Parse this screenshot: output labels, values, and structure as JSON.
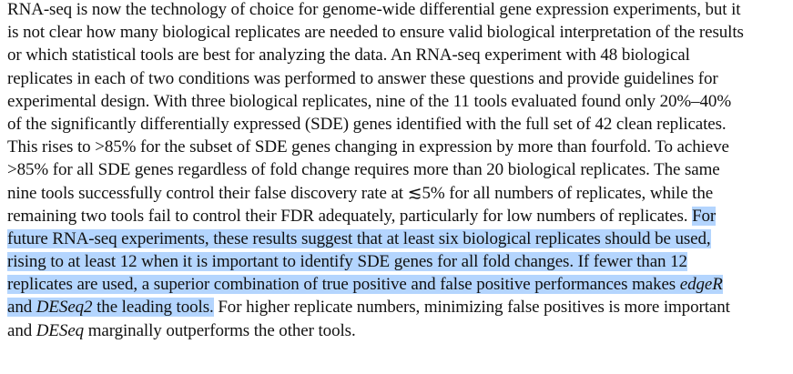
{
  "colors": {
    "selection_highlight": "#b4d5fe",
    "text": "#111111"
  },
  "abstract": {
    "l1": "RNA-seq is now the technology of choice for genome-wide differential gene expression experiments, but it",
    "l2": "is not clear how many biological replicates are needed to ensure valid biological interpretation of the results",
    "l3": "or which statistical tools are best for analyzing the data. An RNA-seq experiment with 48 biological",
    "l4": "replicates in each of two conditions was performed to answer these questions and provide guidelines for",
    "l5": "experimental design. With three biological replicates, nine of the 11 tools evaluated found only 20%–40%",
    "l6": "of the significantly differentially expressed (SDE) genes identified with the full set of 42 clean replicates.",
    "l7": "This rises to >85% for the subset of SDE genes changing in expression by more than fourfold. To achieve",
    "l8": ">85% for all SDE genes regardless of fold change requires more than 20 biological replicates. The same",
    "l9": "nine tools successfully control their false discovery rate at ≲5% for all numbers of replicates, while the",
    "l10a": "remaining two tools fail to control their FDR adequately, particularly for low numbers of replicates. ",
    "l10b": "For",
    "l11": "future RNA-seq experiments, these results suggest that at least six biological replicates should be used,",
    "l12": "rising to at least 12 when it is important to identify SDE genes for all fold changes. If fewer than 12",
    "l13a": "replicates are used, a superior combination of true positive and false positive performances makes ",
    "l13b": "edgeR",
    "l14a": "and ",
    "l14b": "DESeq2",
    "l14c": " the leading tools.",
    "l14d": " For higher replicate numbers, minimizing false positives is more important",
    "l15a": "and ",
    "l15b": "DESeq",
    "l15c": " marginally outperforms the other tools."
  }
}
